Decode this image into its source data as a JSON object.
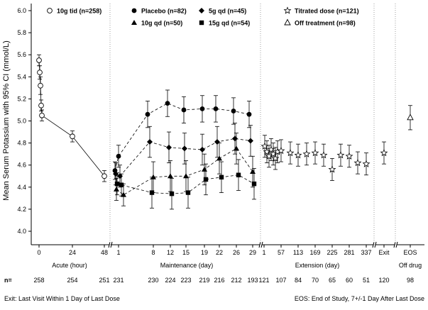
{
  "chart_data": {
    "type": "line",
    "ylabel": "Mean Serum Potassium with 95% CI (mmol/L)",
    "ylim": [
      4.0,
      6.0
    ],
    "yticks": [
      "4.0",
      "4.2",
      "4.4",
      "4.6",
      "4.8",
      "5.0",
      "5.2",
      "5.4",
      "5.6",
      "5.8",
      "6.0"
    ],
    "xticks": [
      "0",
      "24",
      "48",
      "1",
      "8",
      "12",
      "15",
      "19",
      "22",
      "26",
      "29",
      "1",
      "57",
      "113",
      "169",
      "225",
      "281",
      "337",
      "Exit",
      "EOS"
    ],
    "period_labels": [
      "Acute (hour)",
      "Maintenance (day)",
      "Extension (day)",
      "Off drug"
    ],
    "n_prefix": "n=",
    "n_values": [
      "258",
      "254",
      "251",
      "231",
      "230",
      "224",
      "223",
      "219",
      "216",
      "212",
      "193",
      "121",
      "107",
      "84",
      "70",
      "65",
      "60",
      "51",
      "120",
      "98"
    ],
    "legend": [
      {
        "label": "10g tid (n=258)",
        "marker": "open-circle"
      },
      {
        "label": "Placebo (n=82)",
        "marker": "filled-circle"
      },
      {
        "label": "10g qd (n=50)",
        "marker": "filled-triangle"
      },
      {
        "label": "5g qd (n=45)",
        "marker": "filled-diamond"
      },
      {
        "label": "15g qd (n=54)",
        "marker": "filled-square"
      },
      {
        "label": "Titrated dose (n=121)",
        "marker": "open-star"
      },
      {
        "label": "Off treatment (n=98)",
        "marker": "open-triangle"
      }
    ],
    "series": [
      {
        "name": "10g tid (n=258)",
        "marker": "open-circle",
        "line": "solid",
        "points": [
          {
            "x": "0 h",
            "y": 5.55,
            "lo": 5.5,
            "hi": 5.6
          },
          {
            "x": "0 h",
            "y": 5.44,
            "lo": 5.38,
            "hi": 5.5
          },
          {
            "x": "0 h",
            "y": 5.32,
            "lo": 5.24,
            "hi": 5.4
          },
          {
            "x": "0 h",
            "y": 5.14,
            "lo": 5.09,
            "hi": 5.19
          },
          {
            "x": "0 h",
            "y": 5.05,
            "lo": 5.0,
            "hi": 5.1
          },
          {
            "x": "24 h",
            "y": 4.86,
            "lo": 4.81,
            "hi": 4.91
          },
          {
            "x": "48 h",
            "y": 4.5,
            "lo": 4.45,
            "hi": 4.55
          }
        ]
      },
      {
        "name": "Placebo (n=82)",
        "marker": "filled-circle",
        "line": "dashed",
        "points": [
          {
            "x": "1 d",
            "y": 4.55,
            "lo": 4.47,
            "hi": 4.63
          },
          {
            "x": "1 d",
            "y": 4.68,
            "lo": 4.58,
            "hi": 4.78
          },
          {
            "x": "8 d",
            "y": 5.06,
            "lo": 4.94,
            "hi": 5.18
          },
          {
            "x": "12 d",
            "y": 5.16,
            "lo": 5.04,
            "hi": 5.28
          },
          {
            "x": "15 d",
            "y": 5.1,
            "lo": 4.98,
            "hi": 5.22
          },
          {
            "x": "19 d",
            "y": 5.11,
            "lo": 4.99,
            "hi": 5.23
          },
          {
            "x": "22 d",
            "y": 5.11,
            "lo": 4.99,
            "hi": 5.23
          },
          {
            "x": "26 d",
            "y": 5.09,
            "lo": 4.97,
            "hi": 5.21
          },
          {
            "x": "29 d",
            "y": 5.06,
            "lo": 4.94,
            "hi": 5.18
          }
        ]
      },
      {
        "name": "10g qd (n=50)",
        "marker": "filled-triangle",
        "line": "dashed",
        "points": [
          {
            "x": "1 d",
            "y": 4.38,
            "lo": 4.28,
            "hi": 4.48
          },
          {
            "x": "1 d",
            "y": 4.33,
            "lo": 4.23,
            "hi": 4.43
          },
          {
            "x": "8 d",
            "y": 4.49,
            "lo": 4.35,
            "hi": 4.63
          },
          {
            "x": "12 d",
            "y": 4.5,
            "lo": 4.36,
            "hi": 4.64
          },
          {
            "x": "15 d",
            "y": 4.5,
            "lo": 4.36,
            "hi": 4.64
          },
          {
            "x": "19 d",
            "y": 4.56,
            "lo": 4.42,
            "hi": 4.7
          },
          {
            "x": "22 d",
            "y": 4.66,
            "lo": 4.52,
            "hi": 4.8
          },
          {
            "x": "26 d",
            "y": 4.75,
            "lo": 4.61,
            "hi": 4.89
          },
          {
            "x": "29 d",
            "y": 4.54,
            "lo": 4.4,
            "hi": 4.68
          }
        ]
      },
      {
        "name": "5g qd (n=45)",
        "marker": "filled-diamond",
        "line": "dashed",
        "points": [
          {
            "x": "1 d",
            "y": 4.52,
            "lo": 4.42,
            "hi": 4.62
          },
          {
            "x": "1 d",
            "y": 4.5,
            "lo": 4.4,
            "hi": 4.6
          },
          {
            "x": "8 d",
            "y": 4.81,
            "lo": 4.67,
            "hi": 4.95
          },
          {
            "x": "12 d",
            "y": 4.76,
            "lo": 4.62,
            "hi": 4.9
          },
          {
            "x": "15 d",
            "y": 4.75,
            "lo": 4.61,
            "hi": 4.89
          },
          {
            "x": "19 d",
            "y": 4.74,
            "lo": 4.6,
            "hi": 4.88
          },
          {
            "x": "22 d",
            "y": 4.81,
            "lo": 4.67,
            "hi": 4.95
          },
          {
            "x": "26 d",
            "y": 4.84,
            "lo": 4.7,
            "hi": 4.98
          },
          {
            "x": "29 d",
            "y": 4.82,
            "lo": 4.68,
            "hi": 4.96
          }
        ]
      },
      {
        "name": "15g qd (n=54)",
        "marker": "filled-square",
        "line": "dashed",
        "points": [
          {
            "x": "1 d",
            "y": 4.43,
            "lo": 4.33,
            "hi": 4.53
          },
          {
            "x": "1 d",
            "y": 4.42,
            "lo": 4.32,
            "hi": 4.52
          },
          {
            "x": "8 d",
            "y": 4.35,
            "lo": 4.21,
            "hi": 4.49
          },
          {
            "x": "12 d",
            "y": 4.34,
            "lo": 4.2,
            "hi": 4.48
          },
          {
            "x": "15 d",
            "y": 4.35,
            "lo": 4.21,
            "hi": 4.49
          },
          {
            "x": "19 d",
            "y": 4.47,
            "lo": 4.33,
            "hi": 4.61
          },
          {
            "x": "22 d",
            "y": 4.49,
            "lo": 4.35,
            "hi": 4.63
          },
          {
            "x": "26 d",
            "y": 4.51,
            "lo": 4.37,
            "hi": 4.65
          },
          {
            "x": "29 d",
            "y": 4.43,
            "lo": 4.29,
            "hi": 4.57
          }
        ]
      },
      {
        "name": "Titrated dose (n=121)",
        "marker": "open-star",
        "line": "none",
        "points": [
          {
            "x": "1 d ext",
            "y": 4.77,
            "lo": 4.67,
            "hi": 4.87
          },
          {
            "x": "1 d ext",
            "y": 4.72,
            "lo": 4.62,
            "hi": 4.82
          },
          {
            "x": "1 d ext",
            "y": 4.68,
            "lo": 4.58,
            "hi": 4.78
          },
          {
            "x": "1 d ext",
            "y": 4.74,
            "lo": 4.64,
            "hi": 4.84
          },
          {
            "x": "1 d ext",
            "y": 4.7,
            "lo": 4.6,
            "hi": 4.8
          },
          {
            "x": "1 d ext",
            "y": 4.66,
            "lo": 4.56,
            "hi": 4.76
          },
          {
            "x": "1 d ext",
            "y": 4.72,
            "lo": 4.62,
            "hi": 4.82
          },
          {
            "x": "57 d",
            "y": 4.73,
            "lo": 4.63,
            "hi": 4.83
          },
          {
            "x": "85 d",
            "y": 4.71,
            "lo": 4.61,
            "hi": 4.81
          },
          {
            "x": "113 d",
            "y": 4.69,
            "lo": 4.59,
            "hi": 4.79
          },
          {
            "x": "141 d",
            "y": 4.7,
            "lo": 4.6,
            "hi": 4.8
          },
          {
            "x": "169 d",
            "y": 4.71,
            "lo": 4.61,
            "hi": 4.81
          },
          {
            "x": "197 d",
            "y": 4.69,
            "lo": 4.59,
            "hi": 4.79
          },
          {
            "x": "225 d",
            "y": 4.56,
            "lo": 4.46,
            "hi": 4.66
          },
          {
            "x": "253 d",
            "y": 4.69,
            "lo": 4.59,
            "hi": 4.79
          },
          {
            "x": "281 d",
            "y": 4.68,
            "lo": 4.58,
            "hi": 4.78
          },
          {
            "x": "309 d",
            "y": 4.62,
            "lo": 4.52,
            "hi": 4.72
          },
          {
            "x": "337 d",
            "y": 4.61,
            "lo": 4.51,
            "hi": 4.71
          },
          {
            "x": "Exit",
            "y": 4.71,
            "lo": 4.61,
            "hi": 4.81
          }
        ]
      },
      {
        "name": "Off treatment (n=98)",
        "marker": "open-triangle",
        "line": "none",
        "points": [
          {
            "x": "EOS",
            "y": 5.03,
            "lo": 4.92,
            "hi": 5.14
          }
        ]
      }
    ],
    "footer_left": "Exit: Last Visit Within 1 Day of Last Dose",
    "footer_right": "EOS: End of Study, 7+/-1 Day After Last Dose"
  }
}
